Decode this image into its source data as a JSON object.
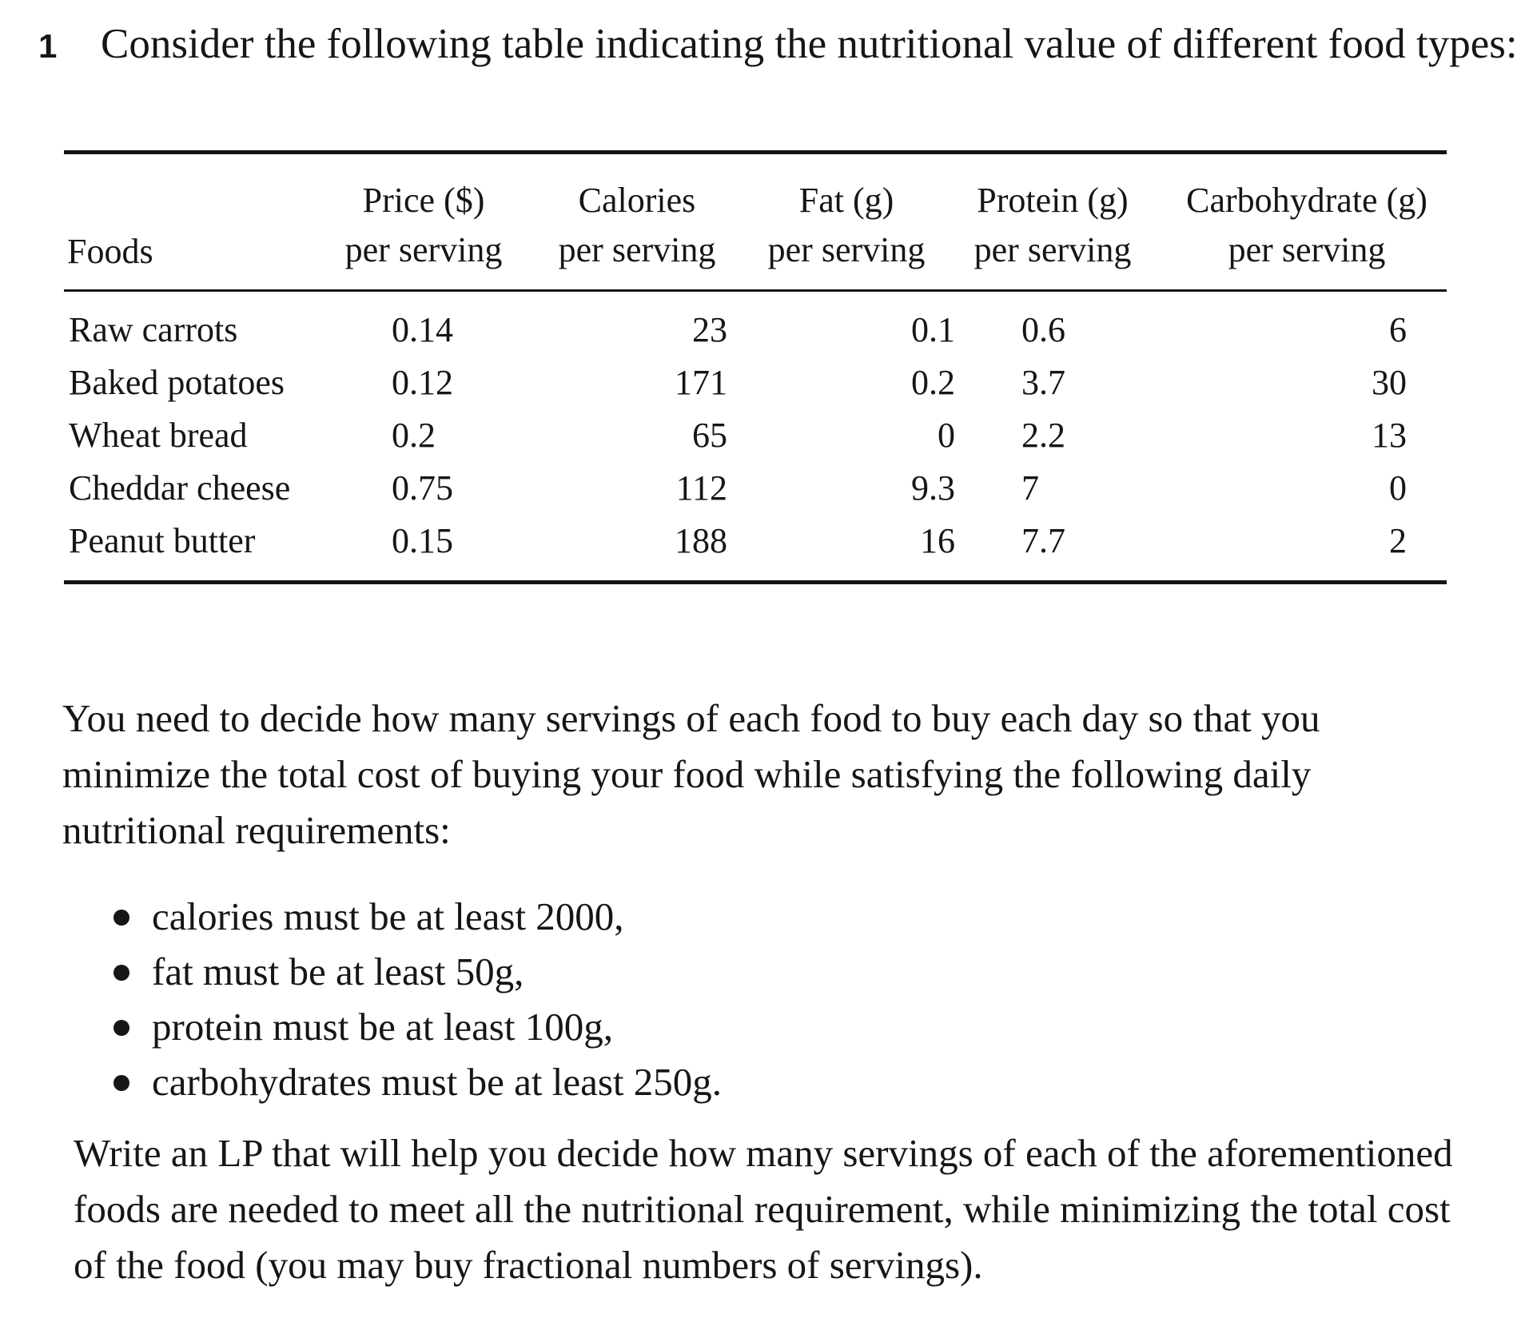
{
  "question": {
    "number": "1",
    "intro": "Consider the following table indicating the nutritional value of different food types:"
  },
  "table": {
    "columns": [
      {
        "line1": "",
        "line2": "Foods"
      },
      {
        "line1": "Price ($)",
        "line2": "per serving"
      },
      {
        "line1": "Calories",
        "line2": "per serving"
      },
      {
        "line1": "Fat (g)",
        "line2": "per serving"
      },
      {
        "line1": "Protein (g)",
        "line2": "per serving"
      },
      {
        "line1": "Carbohydrate (g)",
        "line2": "per serving"
      }
    ],
    "rows": [
      {
        "food": "Raw carrots",
        "price": "0.14",
        "calories": "23",
        "fat": "0.1",
        "protein": "0.6",
        "carbohydrate": "6"
      },
      {
        "food": "Baked potatoes",
        "price": "0.12",
        "calories": "171",
        "fat": "0.2",
        "protein": "3.7",
        "carbohydrate": "30"
      },
      {
        "food": "Wheat bread",
        "price": "0.2",
        "calories": "65",
        "fat": "0",
        "protein": "2.2",
        "carbohydrate": "13"
      },
      {
        "food": "Cheddar cheese",
        "price": "0.75",
        "calories": "112",
        "fat": "9.3",
        "protein": "7",
        "carbohydrate": "0"
      },
      {
        "food": "Peanut butter",
        "price": "0.15",
        "calories": "188",
        "fat": "16",
        "protein": "7.7",
        "carbohydrate": "2"
      }
    ]
  },
  "paragraph1": "You need to decide how many servings of each food to buy each day so that you minimize the total cost of buying your food while satisfying the following daily nutritional requirements:",
  "requirements": [
    "calories must be at least 2000,",
    "fat must be at least 50g,",
    "protein must be at least 100g,",
    "carbohydrates must be at least 250g."
  ],
  "paragraph2": "Write an LP that will help you decide how many servings of each of the aforementioned foods are needed to meet all the nutritional requirement, while minimizing the total cost of the food (you may buy fractional numbers of servings)."
}
